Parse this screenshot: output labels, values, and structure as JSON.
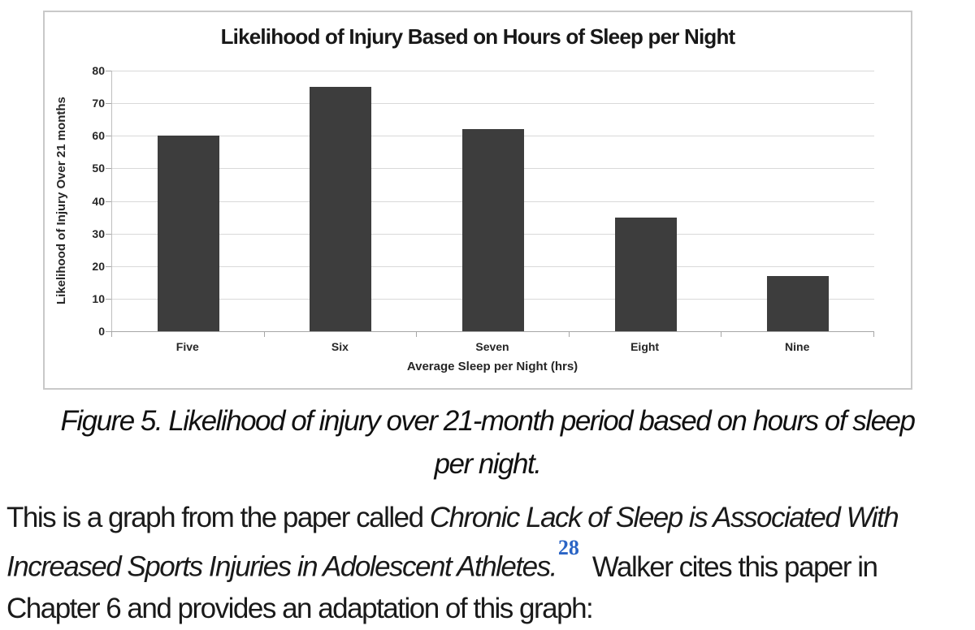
{
  "chart_data": {
    "type": "bar",
    "title": "Likelihood of Injury Based on Hours of Sleep per Night",
    "categories": [
      "Five",
      "Six",
      "Seven",
      "Eight",
      "Nine"
    ],
    "values": [
      60,
      75,
      62,
      35,
      17
    ],
    "xlabel": "Average Sleep per Night (hrs)",
    "ylabel": "Likelihood of Injury Over 21 months",
    "ylim": [
      0,
      80
    ],
    "ytick_step": 10,
    "yticks": [
      0,
      10,
      20,
      30,
      40,
      50,
      60,
      70,
      80
    ],
    "grid": true,
    "legend": false,
    "bar_color": "#3d3d3d"
  },
  "caption": {
    "lines": [
      "Figure 5. Likelihood of injury over 21-month period based on hours of sleep",
      "per night."
    ]
  },
  "paragraph": {
    "intro": "This is a graph from the paper called ",
    "paper_title_line1": "Chronic Lack of Sleep is Associated With",
    "paper_title_line2": "Increased Sports Injuries in Adolescent Athletes.",
    "citation": "28",
    "after_citation": "Walker cites this paper in",
    "closing": "Chapter 6 and provides an adaptation of this graph:"
  },
  "colors": {
    "bar": "#3d3d3d",
    "gridline": "#d9d9d9",
    "axis": "#a6a6a6",
    "frame_border": "#c9c9c9",
    "citation_blue": "#2a64c5",
    "text": "#1a1a1a"
  }
}
